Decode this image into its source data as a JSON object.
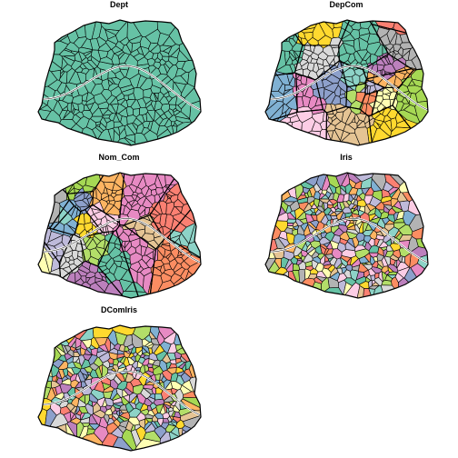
{
  "panels": [
    {
      "title": "Dept",
      "scheme": "single"
    },
    {
      "title": "DepCom",
      "scheme": "districts"
    },
    {
      "title": "Nom_Com",
      "scheme": "districts-alt"
    },
    {
      "title": "Iris",
      "scheme": "iris"
    },
    {
      "title": "DComIris",
      "scheme": "iris-alt"
    }
  ],
  "palette": [
    "#66C2A5",
    "#FC8D62",
    "#8DA0CB",
    "#E78AC3",
    "#A6D854",
    "#FFD92F",
    "#E5C494",
    "#B3B3B3",
    "#8DD3C7",
    "#FFFFB3",
    "#BEBADA",
    "#FB8072",
    "#80B1D3",
    "#FDB462",
    "#B3DE69",
    "#FCCDE5",
    "#D9D9D9",
    "#BC80BD"
  ],
  "fill_single": "#66C2A5",
  "stroke": "#000000"
}
